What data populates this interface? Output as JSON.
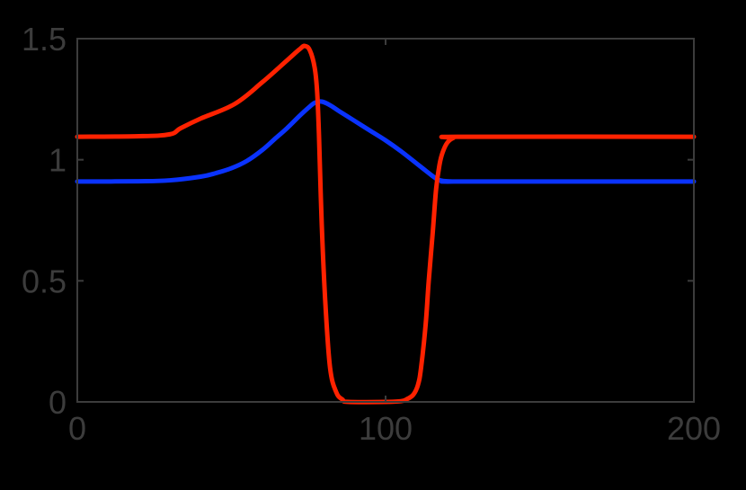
{
  "chart_data": {
    "type": "line",
    "title": "",
    "xlabel": "",
    "ylabel": "",
    "xlim": [
      0,
      200
    ],
    "ylim": [
      0,
      1.5
    ],
    "xticks": [
      0,
      100,
      200
    ],
    "xtick_labels": [
      "0",
      "100",
      "200"
    ],
    "yticks": [
      0,
      0.5,
      1,
      1.5
    ],
    "ytick_labels": [
      "0",
      "0.5",
      "1",
      "1.5"
    ],
    "grid": false,
    "legend": null,
    "series": [
      {
        "name": "red",
        "color": "#ff2200",
        "x": [
          0,
          20,
          30,
          33.5,
          40,
          51,
          60,
          68,
          72,
          73.8,
          75.5,
          77,
          77.8,
          78.4,
          79.3,
          80.5,
          82,
          84,
          86,
          88,
          100,
          105,
          107,
          109,
          110.5,
          111.5,
          113,
          114,
          115.3,
          116.4,
          117.5,
          118.5,
          120,
          122,
          125,
          200
        ],
        "y": [
          1.095,
          1.097,
          1.105,
          1.13,
          1.17,
          1.23,
          1.32,
          1.41,
          1.455,
          1.47,
          1.45,
          1.38,
          1.28,
          1.1,
          0.73,
          0.4,
          0.14,
          0.04,
          0.01,
          0.0,
          0.0,
          0.003,
          0.012,
          0.03,
          0.07,
          0.14,
          0.32,
          0.5,
          0.7,
          0.88,
          0.98,
          1.03,
          1.07,
          1.09,
          1.095,
          1.095
        ]
      },
      {
        "name": "blue",
        "color": "#0a33ff",
        "x": [
          0,
          20,
          30,
          40,
          45,
          50,
          55,
          60,
          64,
          68,
          72,
          75,
          77,
          79.3,
          82,
          85,
          90,
          95,
          100,
          105,
          110,
          113,
          115,
          117,
          119,
          122,
          125,
          200
        ],
        "y": [
          0.91,
          0.911,
          0.915,
          0.93,
          0.945,
          0.965,
          0.995,
          1.04,
          1.085,
          1.13,
          1.18,
          1.215,
          1.235,
          1.24,
          1.225,
          1.2,
          1.16,
          1.12,
          1.08,
          1.035,
          0.985,
          0.955,
          0.935,
          0.918,
          0.912,
          0.91,
          0.91,
          0.91
        ]
      }
    ]
  },
  "axes": {
    "frame_color": "#3c3c3c",
    "label_color": "#3c3c3c",
    "background": "#000000"
  }
}
